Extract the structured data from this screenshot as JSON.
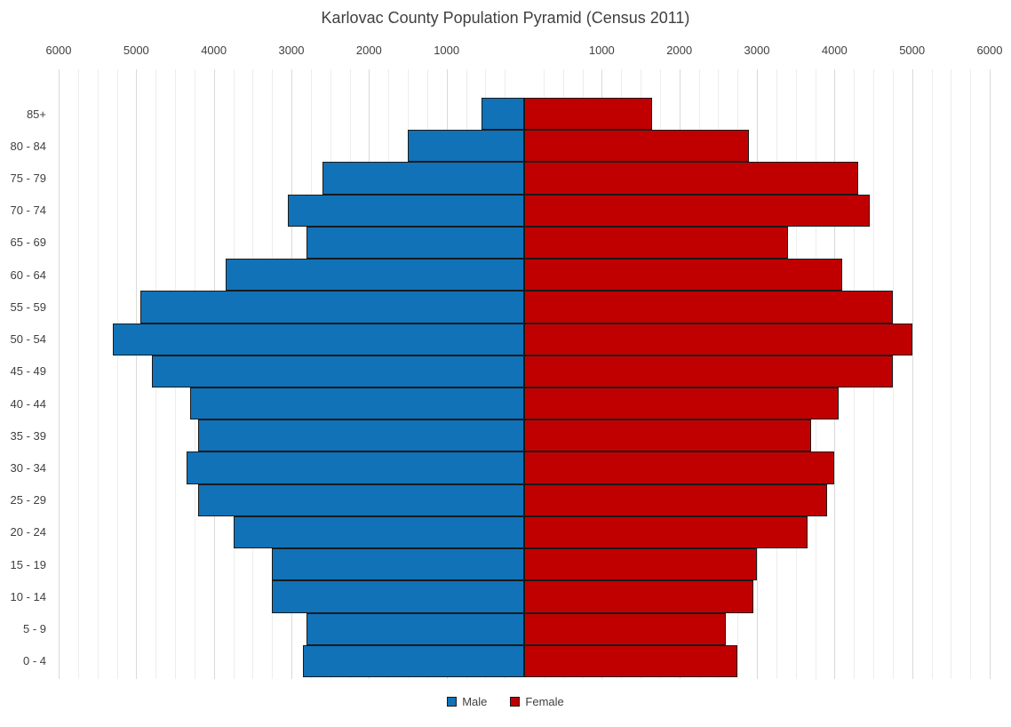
{
  "chart_data": {
    "type": "bar",
    "variant": "population-pyramid",
    "title": "Karlovac County Population Pyramid (Census 2011)",
    "categories": [
      "85+",
      "80 - 84",
      "75 - 79",
      "70 - 74",
      "65 - 69",
      "60 - 64",
      "55 - 59",
      "50 - 54",
      "45 - 49",
      "40 - 44",
      "35 - 39",
      "30 - 34",
      "25 - 29",
      "20 - 24",
      "15 - 19",
      "10 - 14",
      "5 - 9",
      "0 - 4"
    ],
    "series": [
      {
        "name": "Male",
        "color": "#1172B8",
        "values": [
          550,
          1500,
          2600,
          3050,
          2800,
          3850,
          4950,
          5300,
          4800,
          4300,
          4200,
          4350,
          4200,
          3750,
          3250,
          3250,
          2800,
          2850
        ]
      },
      {
        "name": "Female",
        "color": "#C00000",
        "values": [
          1650,
          2900,
          4300,
          4450,
          3400,
          4100,
          4750,
          5000,
          4750,
          4050,
          3700,
          4000,
          3900,
          3650,
          3000,
          2950,
          2600,
          2750
        ]
      }
    ],
    "xlabel": "",
    "ylabel": "",
    "x_axis": {
      "limit_each_side": 6000,
      "tick_interval": 1000,
      "minor_gridline_interval": 250,
      "tick_labels_left": [
        "6000",
        "5000",
        "4000",
        "3000",
        "2000",
        "1000"
      ],
      "tick_labels_right": [
        "1000",
        "2000",
        "3000",
        "4000",
        "5000",
        "6000"
      ]
    },
    "legend": {
      "position": "bottom",
      "entries": [
        "Male",
        "Female"
      ]
    },
    "styles": {
      "bar_border_color": "#1A1A1A",
      "major_gridline_color": "#D9D9D9",
      "minor_gridline_color": "#EDEDED",
      "text_color": "#404040",
      "background": "#FFFFFF"
    }
  }
}
